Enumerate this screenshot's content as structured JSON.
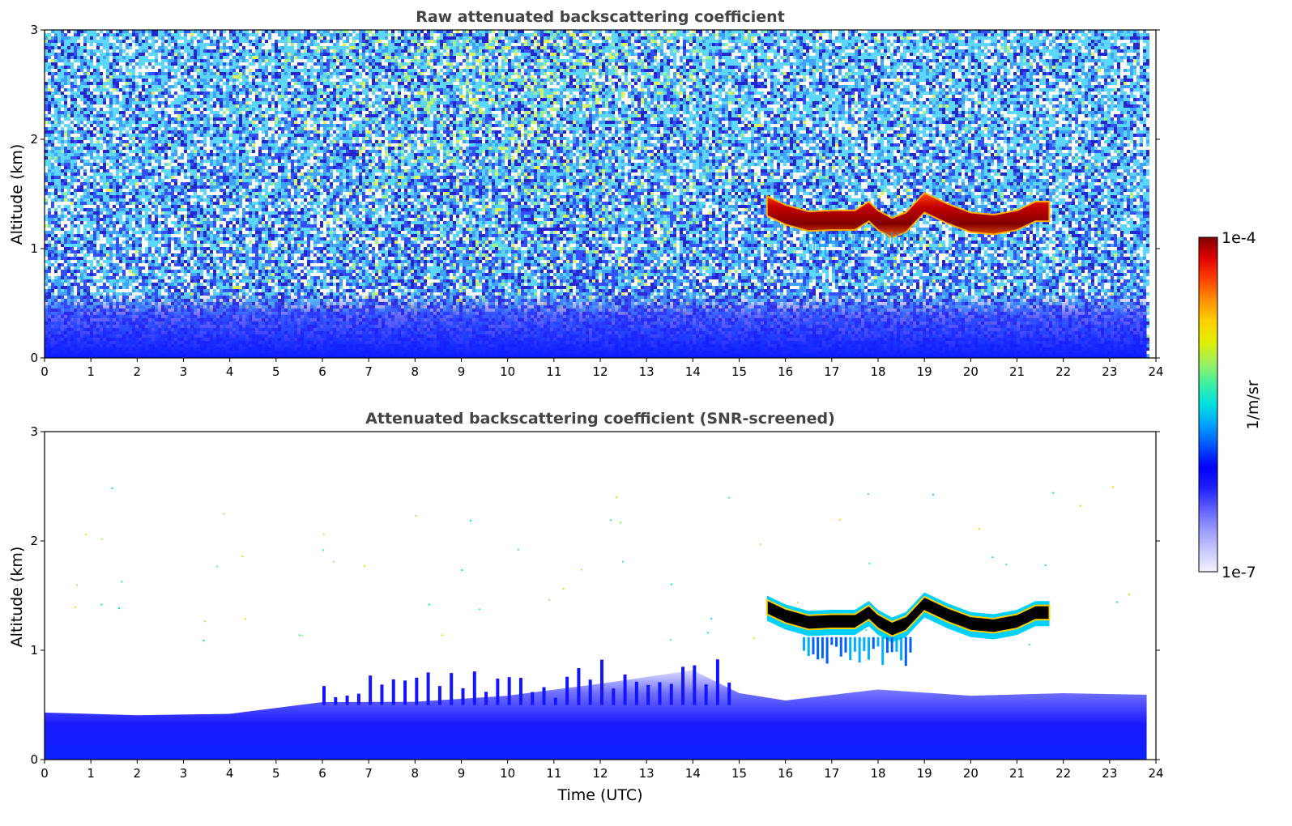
{
  "chart_data": [
    {
      "type": "heatmap",
      "title": "Raw attenuated backscattering coefficient",
      "xlabel": "",
      "ylabel": "Altitude (km)",
      "xlim": [
        0,
        24
      ],
      "ylim": [
        0,
        3
      ],
      "xticks": [
        "0",
        "1",
        "2",
        "3",
        "4",
        "5",
        "6",
        "7",
        "8",
        "9",
        "10",
        "11",
        "12",
        "13",
        "14",
        "15",
        "16",
        "17",
        "18",
        "19",
        "20",
        "21",
        "22",
        "23",
        "24"
      ],
      "yticks": [
        "0",
        "1",
        "2",
        "3"
      ],
      "data_extent_hours": [
        0,
        23.8
      ],
      "features": [
        {
          "name": "noise",
          "description": "high-altitude noise increasing with solar background, strongest 6-14 UTC"
        },
        {
          "name": "boundary_layer",
          "description": "dense low-level aerosol below ~0.4 km"
        },
        {
          "name": "cloud",
          "time_range": [
            15.6,
            21.7
          ],
          "altitude_km": [
            1.15,
            1.45
          ],
          "peak": "1e-4"
        }
      ],
      "cloud_base_km": [
        {
          "x": 15.6,
          "y": 1.35
        },
        {
          "x": 16.0,
          "y": 1.27
        },
        {
          "x": 16.5,
          "y": 1.21
        },
        {
          "x": 17.0,
          "y": 1.22
        },
        {
          "x": 17.5,
          "y": 1.22
        },
        {
          "x": 17.8,
          "y": 1.3
        },
        {
          "x": 18.0,
          "y": 1.22
        },
        {
          "x": 18.3,
          "y": 1.15
        },
        {
          "x": 18.6,
          "y": 1.2
        },
        {
          "x": 19.0,
          "y": 1.38
        },
        {
          "x": 19.5,
          "y": 1.28
        },
        {
          "x": 20.0,
          "y": 1.2
        },
        {
          "x": 20.5,
          "y": 1.18
        },
        {
          "x": 21.0,
          "y": 1.22
        },
        {
          "x": 21.4,
          "y": 1.3
        },
        {
          "x": 21.7,
          "y": 1.3
        }
      ]
    },
    {
      "type": "heatmap",
      "title": "Attenuated backscattering coefficient (SNR-screened)",
      "xlabel": "Time (UTC)",
      "ylabel": "Altitude (km)",
      "xlim": [
        0,
        24
      ],
      "ylim": [
        0,
        3
      ],
      "xticks": [
        "0",
        "1",
        "2",
        "3",
        "4",
        "5",
        "6",
        "7",
        "8",
        "9",
        "10",
        "11",
        "12",
        "13",
        "14",
        "15",
        "16",
        "17",
        "18",
        "19",
        "20",
        "21",
        "22",
        "23",
        "24"
      ],
      "yticks": [
        "0",
        "1",
        "2",
        "3"
      ],
      "data_extent_hours": [
        0,
        23.8
      ],
      "features": [
        {
          "name": "boundary_layer",
          "description": "aerosol layer top rising from ~0.4 km to ~0.8 km near 14 UTC, ~0.6 km after 16 UTC"
        },
        {
          "name": "cloud",
          "time_range": [
            15.6,
            21.7
          ],
          "altitude_km": [
            1.1,
            1.5
          ],
          "peak": "1e-4",
          "virga_below_km": 0.85
        }
      ],
      "boundary_layer_top_km": [
        {
          "x": 0,
          "y": 0.45
        },
        {
          "x": 2,
          "y": 0.42
        },
        {
          "x": 4,
          "y": 0.4
        },
        {
          "x": 6,
          "y": 0.5
        },
        {
          "x": 8,
          "y": 0.55
        },
        {
          "x": 10,
          "y": 0.6
        },
        {
          "x": 12,
          "y": 0.72
        },
        {
          "x": 14,
          "y": 0.8
        },
        {
          "x": 15,
          "y": 0.6
        },
        {
          "x": 16,
          "y": 0.55
        },
        {
          "x": 18,
          "y": 0.62
        },
        {
          "x": 20,
          "y": 0.6
        },
        {
          "x": 22,
          "y": 0.62
        },
        {
          "x": 23.8,
          "y": 0.6
        }
      ]
    }
  ],
  "colorbar": {
    "label": "1/m/sr",
    "max_label": "1e-4",
    "min_label": "1e-7",
    "scale": "log",
    "colors": [
      "#f2f2ff",
      "#c8c8ff",
      "#9a9aff",
      "#6060ff",
      "#2020ff",
      "#0000ff",
      "#0050ff",
      "#00a0ff",
      "#00e0e0",
      "#40f0a0",
      "#a0f060",
      "#e0f000",
      "#ffd000",
      "#ff9000",
      "#ff4000",
      "#e00000",
      "#800000"
    ]
  }
}
